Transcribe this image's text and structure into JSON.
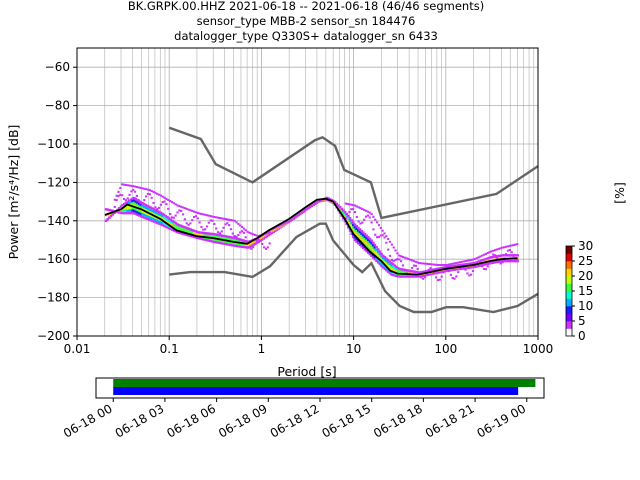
{
  "title_lines": [
    "BK.GRPK.00.HHZ   2021-06-18 -- 2021-06-18  (46/46 segments)",
    "sensor_type MBB-2 sensor_sn 184476",
    "datalogger_type Q330S+ datalogger_sn 6433"
  ],
  "chart_data": [
    {
      "type": "heatmap",
      "subtype": "probabilistic-power-spectral-density",
      "xlabel": "Period [s]",
      "ylabel": "Power [m²/s⁴/Hz] [dB]",
      "xscale": "log",
      "xlim": [
        0.01,
        1000
      ],
      "ylim": [
        -200,
        -50
      ],
      "grid": true,
      "x_ticks": [
        {
          "value": 0.01,
          "label": "0.01"
        },
        {
          "value": 0.1,
          "label": "0.1"
        },
        {
          "value": 1,
          "label": "1"
        },
        {
          "value": 10,
          "label": "10"
        },
        {
          "value": 100,
          "label": "100"
        },
        {
          "value": 1000,
          "label": "1000"
        }
      ],
      "y_ticks": [
        {
          "value": -200,
          "label": "−200"
        },
        {
          "value": -180,
          "label": "−180"
        },
        {
          "value": -160,
          "label": "−160"
        },
        {
          "value": -140,
          "label": "−140"
        },
        {
          "value": -120,
          "label": "−120"
        },
        {
          "value": -100,
          "label": "−100"
        },
        {
          "value": -80,
          "label": "−80"
        },
        {
          "value": -60,
          "label": "−60"
        }
      ],
      "noise_model_high": [
        [
          0.1,
          -91.5
        ],
        [
          0.22,
          -97.4
        ],
        [
          0.32,
          -110.5
        ],
        [
          0.8,
          -120
        ],
        [
          3.8,
          -98
        ],
        [
          4.6,
          -96.5
        ],
        [
          6.3,
          -101
        ],
        [
          7.9,
          -113.5
        ],
        [
          15.4,
          -120
        ],
        [
          20,
          -138.5
        ],
        [
          354.8,
          -126
        ],
        [
          1000,
          -111.5
        ]
      ],
      "noise_model_low": [
        [
          0.1,
          -168
        ],
        [
          0.17,
          -166.7
        ],
        [
          0.4,
          -166.7
        ],
        [
          0.8,
          -169.2
        ],
        [
          1.24,
          -163.7
        ],
        [
          2.4,
          -148.4
        ],
        [
          4.3,
          -141.5
        ],
        [
          5,
          -141.5
        ],
        [
          6.0,
          -150.2
        ],
        [
          10,
          -163
        ],
        [
          12.4,
          -166.7
        ],
        [
          15.6,
          -162.1
        ],
        [
          21.9,
          -176.6
        ],
        [
          31.6,
          -184.4
        ],
        [
          45,
          -187.5
        ],
        [
          70,
          -187.5
        ],
        [
          101,
          -185
        ],
        [
          154,
          -185
        ],
        [
          328,
          -187.5
        ],
        [
          600,
          -184.4
        ],
        [
          1000,
          -178
        ]
      ],
      "mean_curve": [
        [
          0.02,
          -137
        ],
        [
          0.03,
          -134
        ],
        [
          0.035,
          -131.5
        ],
        [
          0.05,
          -134
        ],
        [
          0.08,
          -139
        ],
        [
          0.12,
          -145
        ],
        [
          0.2,
          -148
        ],
        [
          0.3,
          -149
        ],
        [
          0.5,
          -151
        ],
        [
          0.7,
          -152
        ],
        [
          0.9,
          -149
        ],
        [
          1.2,
          -145
        ],
        [
          2,
          -139
        ],
        [
          3,
          -133
        ],
        [
          4,
          -129
        ],
        [
          5,
          -128.5
        ],
        [
          6,
          -130
        ],
        [
          8,
          -139
        ],
        [
          10,
          -147
        ],
        [
          15,
          -156
        ],
        [
          20,
          -161
        ],
        [
          25,
          -166
        ],
        [
          30,
          -167.5
        ],
        [
          50,
          -168
        ],
        [
          80,
          -166
        ],
        [
          100,
          -165
        ],
        [
          200,
          -163
        ],
        [
          300,
          -161
        ],
        [
          400,
          -160
        ],
        [
          600,
          -159.5
        ]
      ],
      "density_curves": [
        {
          "band": [
            0.02,
            1000
          ],
          "points": [
            [
              0.02,
              -140
            ],
            [
              0.03,
              -132
            ],
            [
              0.04,
              -128
            ],
            [
              0.05,
              -131
            ],
            [
              0.08,
              -136
            ],
            [
              0.12,
              -142
            ],
            [
              0.2,
              -146
            ],
            [
              0.3,
              -147
            ],
            [
              0.5,
              -149
            ],
            [
              0.7,
              -151
            ],
            [
              0.9,
              -149
            ],
            [
              1.2,
              -145
            ],
            [
              2,
              -140
            ],
            [
              3,
              -134
            ],
            [
              4,
              -130
            ],
            [
              5,
              -128
            ],
            [
              6,
              -130
            ],
            [
              8,
              -136
            ],
            [
              10,
              -142
            ],
            [
              15,
              -150
            ],
            [
              20,
              -158
            ],
            [
              25,
              -162
            ],
            [
              30,
              -165
            ],
            [
              50,
              -167
            ],
            [
              80,
              -165
            ],
            [
              100,
              -164
            ],
            [
              200,
              -162
            ],
            [
              300,
              -159
            ],
            [
              400,
              -158
            ],
            [
              600,
              -158
            ]
          ]
        },
        {
          "band": [
            0.02,
            1000
          ],
          "points": [
            [
              0.02,
              -134
            ],
            [
              0.03,
              -136
            ],
            [
              0.04,
              -136
            ],
            [
              0.05,
              -138
            ],
            [
              0.08,
              -142
            ],
            [
              0.12,
              -146
            ],
            [
              0.2,
              -149
            ],
            [
              0.3,
              -151
            ],
            [
              0.5,
              -153
            ],
            [
              0.7,
              -154
            ],
            [
              0.9,
              -151
            ],
            [
              1.2,
              -147
            ],
            [
              2,
              -140
            ],
            [
              3,
              -134
            ],
            [
              4,
              -130
            ],
            [
              5,
              -129
            ],
            [
              6,
              -131
            ],
            [
              8,
              -141
            ],
            [
              10,
              -150
            ],
            [
              15,
              -158
            ],
            [
              20,
              -164
            ],
            [
              25,
              -168
            ],
            [
              30,
              -169
            ],
            [
              50,
              -169
            ],
            [
              80,
              -167
            ],
            [
              100,
              -166
            ],
            [
              200,
              -164
            ],
            [
              300,
              -162
            ],
            [
              400,
              -161
            ],
            [
              600,
              -161
            ]
          ]
        }
      ],
      "outlier_curves": [
        {
          "points": [
            [
              0.025,
              -129
            ],
            [
              0.03,
              -121
            ],
            [
              0.04,
              -122
            ],
            [
              0.06,
              -124
            ],
            [
              0.08,
              -127
            ],
            [
              0.12,
              -132
            ],
            [
              0.2,
              -136
            ],
            [
              0.3,
              -138
            ],
            [
              0.5,
              -140
            ],
            [
              0.7,
              -146
            ],
            [
              0.9,
              -148
            ],
            [
              1.2,
              -146
            ]
          ]
        },
        {
          "points": [
            [
              8,
              -131
            ],
            [
              10,
              -132
            ],
            [
              15,
              -136
            ],
            [
              20,
              -145
            ],
            [
              25,
              -152
            ],
            [
              30,
              -158
            ],
            [
              50,
              -162
            ],
            [
              80,
              -163
            ],
            [
              100,
              -163
            ],
            [
              200,
              -160
            ],
            [
              300,
              -156
            ],
            [
              400,
              -154
            ],
            [
              600,
              -152
            ]
          ]
        }
      ],
      "colorbar": {
        "label": "[%]",
        "min": 0,
        "max": 30,
        "ticks": [
          {
            "value": 0,
            "label": "0"
          },
          {
            "value": 5,
            "label": "5"
          },
          {
            "value": 10,
            "label": "10"
          },
          {
            "value": 15,
            "label": "15"
          },
          {
            "value": 20,
            "label": "20"
          },
          {
            "value": 25,
            "label": "25"
          },
          {
            "value": 30,
            "label": "30"
          }
        ],
        "colors": [
          "#ffffff",
          "#cc33ff",
          "#7000ff",
          "#1c1cff",
          "#00b0ff",
          "#00ffd0",
          "#3cff3c",
          "#c0ff00",
          "#ffd400",
          "#ff7000",
          "#e00000",
          "#700000"
        ]
      }
    },
    {
      "type": "timeline",
      "xlim": [
        "06-17 23:00",
        "06-19 01:00"
      ],
      "x_ticks": [
        {
          "value": "06-18 00:00",
          "label": "06-18 00"
        },
        {
          "value": "06-18 03:00",
          "label": "06-18 03"
        },
        {
          "value": "06-18 06:00",
          "label": "06-18 06"
        },
        {
          "value": "06-18 09:00",
          "label": "06-18 09"
        },
        {
          "value": "06-18 12:00",
          "label": "06-18 12"
        },
        {
          "value": "06-18 15:00",
          "label": "06-18 15"
        },
        {
          "value": "06-18 18:00",
          "label": "06-18 18"
        },
        {
          "value": "06-18 21:00",
          "label": "06-18 21"
        },
        {
          "value": "06-19 00:00",
          "label": "06-19 00"
        }
      ],
      "bars": [
        {
          "start": "06-18 00:00",
          "end": "06-19 00:30",
          "color": "#008000"
        },
        {
          "start": "06-18 00:00",
          "end": "06-18 23:30",
          "color": "#0000ff"
        }
      ]
    }
  ]
}
